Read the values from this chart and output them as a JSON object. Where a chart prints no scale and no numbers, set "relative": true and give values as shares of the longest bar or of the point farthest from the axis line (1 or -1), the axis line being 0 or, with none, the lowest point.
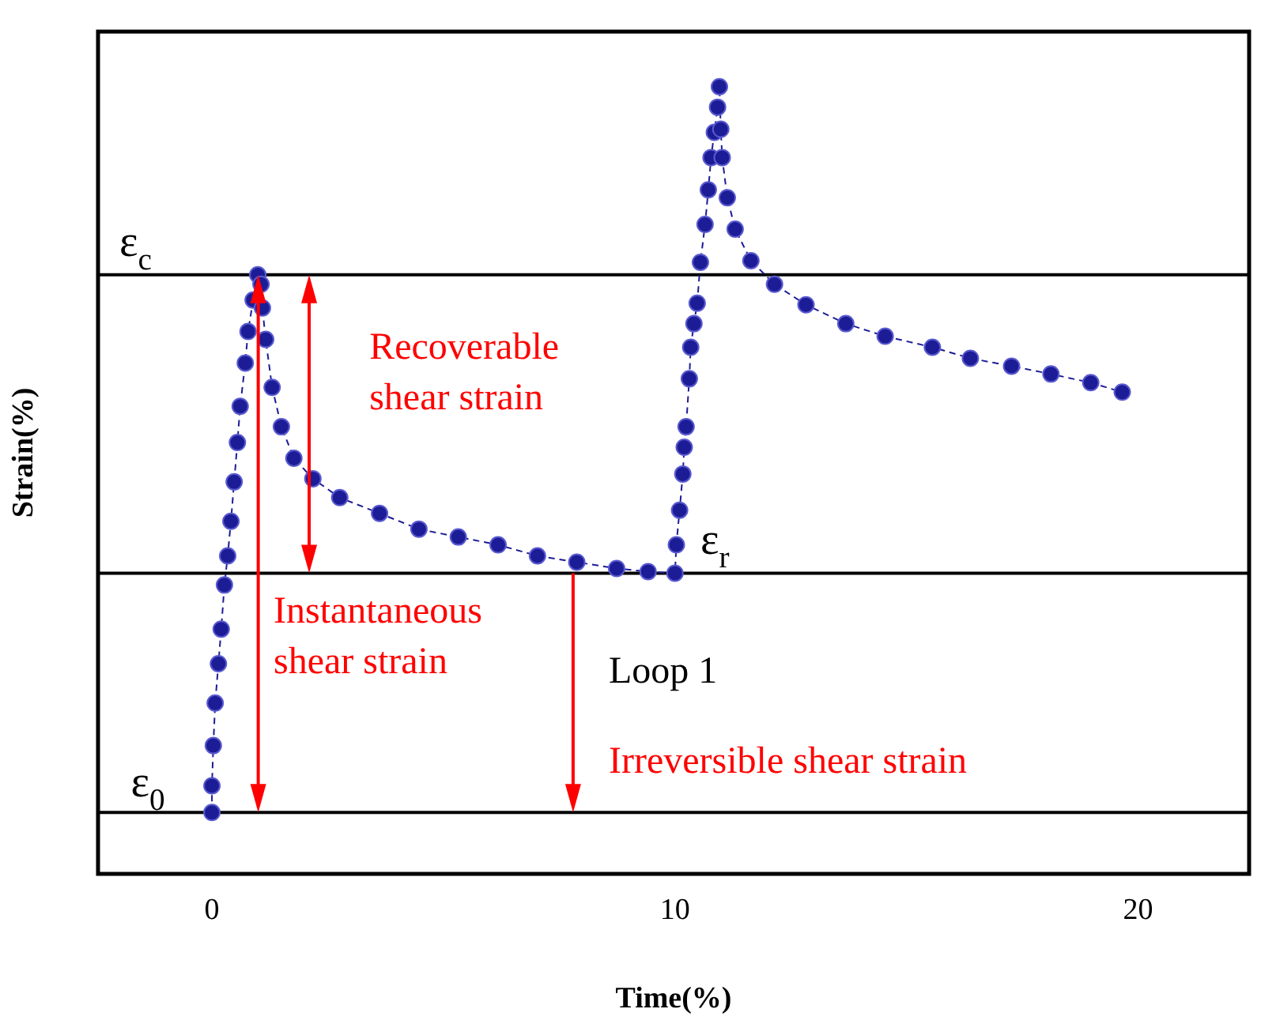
{
  "chart_data": {
    "type": "line",
    "relative": true,
    "xlabel": "Time(%)",
    "ylabel": "Strain(%)",
    "xlim": [
      -2.46,
      22.4
    ],
    "xticks": [
      0,
      10,
      20
    ],
    "grid": false,
    "marker": "circle",
    "line_style": "dashed",
    "series": [
      {
        "color": "#1c1c96",
        "x": [
          0,
          0,
          0.03,
          0.07,
          0.14,
          0.2,
          0.27,
          0.34,
          0.41,
          0.48,
          0.55,
          0.61,
          0.72,
          0.78,
          0.89,
          0.99,
          1.06,
          1.09,
          1.16,
          1.3,
          1.5,
          1.77,
          2.18,
          2.76,
          3.62,
          4.47,
          5.32,
          6.18,
          7.03,
          7.88,
          8.74,
          9.42,
          10,
          10.03,
          10.1,
          10.17,
          10.2,
          10.24,
          10.31,
          10.34,
          10.41,
          10.48,
          10.55,
          10.65,
          10.72,
          10.78,
          10.85,
          10.92,
          10.96,
          10.99,
          11.02,
          11.13,
          11.3,
          11.64,
          12.15,
          12.83,
          13.69,
          14.54,
          15.56,
          16.38,
          17.27,
          18.12,
          18.98,
          19.66
        ],
        "values": [
          0.078,
          0.112,
          0.163,
          0.217,
          0.267,
          0.311,
          0.367,
          0.404,
          0.448,
          0.498,
          0.548,
          0.594,
          0.649,
          0.689,
          0.729,
          0.761,
          0.749,
          0.719,
          0.679,
          0.618,
          0.568,
          0.528,
          0.502,
          0.478,
          0.458,
          0.438,
          0.428,
          0.418,
          0.404,
          0.396,
          0.388,
          0.384,
          0.382,
          0.418,
          0.462,
          0.508,
          0.542,
          0.568,
          0.629,
          0.669,
          0.699,
          0.725,
          0.777,
          0.825,
          0.869,
          0.91,
          0.942,
          0.974,
          1,
          0.946,
          0.91,
          0.859,
          0.819,
          0.779,
          0.749,
          0.723,
          0.699,
          0.683,
          0.669,
          0.655,
          0.645,
          0.635,
          0.624,
          0.612
        ]
      }
    ],
    "ref_lines": [
      {
        "axis": "y",
        "value": 0.761,
        "label": "ε$_{c}$",
        "color": "#000000"
      },
      {
        "axis": "y",
        "value": 0.382,
        "label": "ε$_{r}$",
        "color": "#000000"
      },
      {
        "axis": "y",
        "value": 0.078,
        "label": "ε$_{0}$",
        "color": "#000000"
      }
    ],
    "annotations": [
      "Recoverable shear strain",
      "Instantaneous shear strain",
      "Loop 1",
      "Irreversible shear strain"
    ]
  }
}
